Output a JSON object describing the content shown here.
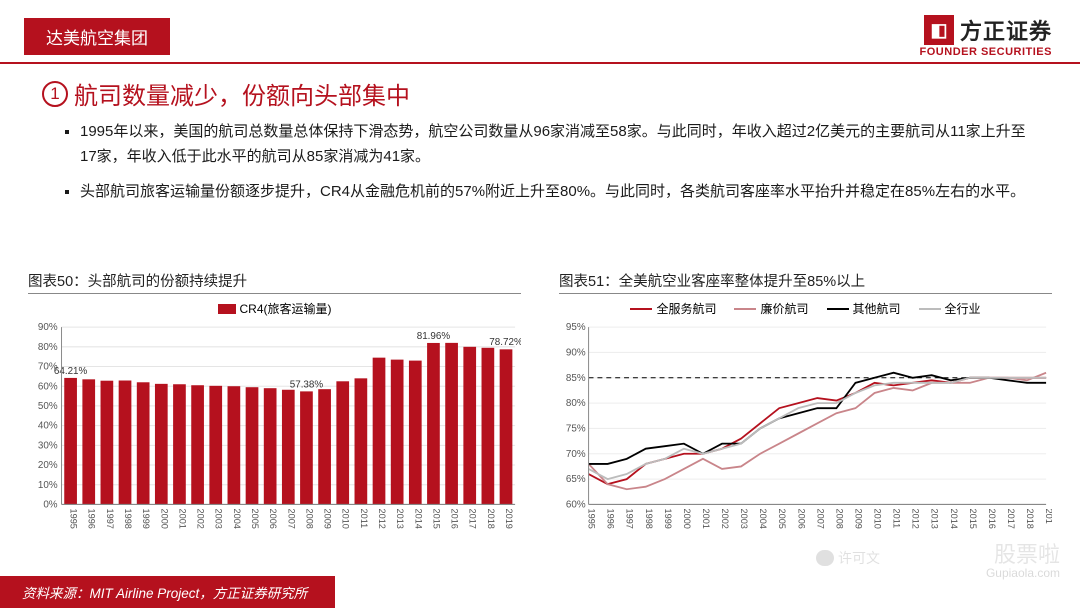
{
  "header": {
    "banner": "达美航空集团",
    "logo_cn": "方正证券",
    "logo_en": "FOUNDER SECURITIES"
  },
  "title": {
    "number": "1",
    "text": "航司数量减少，份额向头部集中"
  },
  "bullets": [
    "1995年以来，美国的航司总数量总体保持下滑态势，航空公司数量从96家消减至58家。与此同时，年收入超过2亿美元的主要航司从11家上升至17家，年收入低于此水平的航司从85家消减为41家。",
    "头部航司旅客运输量份额逐步提升，CR4从金融危机前的57%附近上升至80%。与此同时，各类航司客座率水平抬升并稳定在85%左右的水平。"
  ],
  "chart50": {
    "title": "图表50：头部航司的份额持续提升",
    "legend": "CR4(旅客运输量)",
    "type": "bar",
    "categories": [
      "1995",
      "1996",
      "1997",
      "1998",
      "1999",
      "2000",
      "2001",
      "2002",
      "2003",
      "2004",
      "2005",
      "2006",
      "2007",
      "2008",
      "2009",
      "2010",
      "2011",
      "2012",
      "2013",
      "2014",
      "2015",
      "2016",
      "2017",
      "2018",
      "2019"
    ],
    "values": [
      64.21,
      63.5,
      62.8,
      62.9,
      62.0,
      61.2,
      61.0,
      60.5,
      60.2,
      60.0,
      59.5,
      59.0,
      58.2,
      57.38,
      58.5,
      62.5,
      64.0,
      74.5,
      73.5,
      73.0,
      81.96,
      82.0,
      80.0,
      79.5,
      78.72
    ],
    "callouts": [
      {
        "i": 0,
        "label": "64.21%"
      },
      {
        "i": 13,
        "label": "57.38%"
      },
      {
        "i": 20,
        "label": "81.96%"
      },
      {
        "i": 24,
        "label": "78.72%"
      }
    ],
    "ylim": [
      0,
      90
    ],
    "ytick": 10,
    "bar_color": "#b5111e",
    "bg": "#ffffff",
    "axis_color": "#888"
  },
  "chart51": {
    "title": "图表51：全美航空业客座率整体提升至85%以上",
    "type": "line",
    "series": [
      {
        "name": "全服务航司",
        "color": "#b5111e",
        "categories_y": [
          66,
          64,
          65,
          68,
          69,
          70,
          70,
          71,
          73,
          76,
          79,
          80,
          81,
          80.5,
          82,
          84,
          83.5,
          84,
          84.5,
          84,
          85,
          85,
          85,
          85,
          85
        ]
      },
      {
        "name": "廉价航司",
        "color": "#c9858a",
        "categories_y": [
          68,
          64,
          63,
          63.5,
          65,
          67,
          69,
          67,
          67.5,
          70,
          72,
          74,
          76,
          78,
          79,
          82,
          83,
          82.5,
          84,
          84,
          84,
          85,
          85,
          84.5,
          86
        ]
      },
      {
        "name": "其他航司",
        "color": "#000000",
        "categories_y": [
          68,
          68,
          69,
          71,
          71.5,
          72,
          70,
          72,
          72,
          75,
          77,
          78,
          79,
          79,
          84,
          85,
          86,
          85,
          85.5,
          84.5,
          85,
          85,
          84.5,
          84,
          84
        ]
      },
      {
        "name": "全行业",
        "color": "#bcbcbc",
        "categories_y": [
          67,
          65,
          66,
          68,
          69,
          71,
          70,
          71,
          72,
          75,
          77,
          79,
          80,
          80,
          82,
          83.5,
          84,
          84,
          84,
          84,
          85,
          85,
          85,
          85,
          85
        ]
      }
    ],
    "categories": [
      "1995",
      "1996",
      "1997",
      "1998",
      "1999",
      "2000",
      "2001",
      "2002",
      "2003",
      "2004",
      "2005",
      "2006",
      "2007",
      "2008",
      "2009",
      "2010",
      "2011",
      "2012",
      "2013",
      "2014",
      "2015",
      "2016",
      "2017",
      "2018",
      "201"
    ],
    "ylim": [
      60,
      95
    ],
    "ytick": 5,
    "target_line": 85,
    "axis_color": "#888",
    "grid_color": "#eee"
  },
  "footer": {
    "text": "资料来源：MIT Airline Project，方正证券研究所"
  },
  "watermark": {
    "wx": "许可文",
    "main": "股票啦",
    "sub": "Gupiaola.com"
  }
}
